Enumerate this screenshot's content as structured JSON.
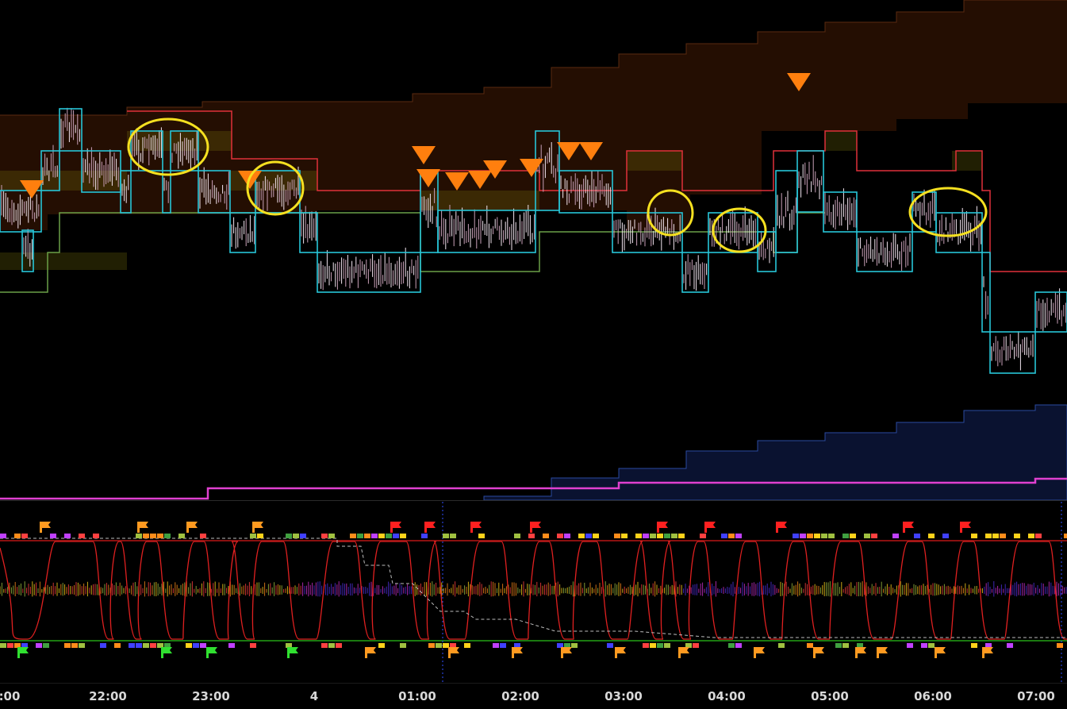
{
  "time_axis": {
    "labels": [
      ":00",
      "22:00",
      "23:00",
      "4",
      "01:00",
      "02:00",
      "03:00",
      "04:00",
      "05:00",
      "06:00",
      "07:00"
    ]
  }
}
